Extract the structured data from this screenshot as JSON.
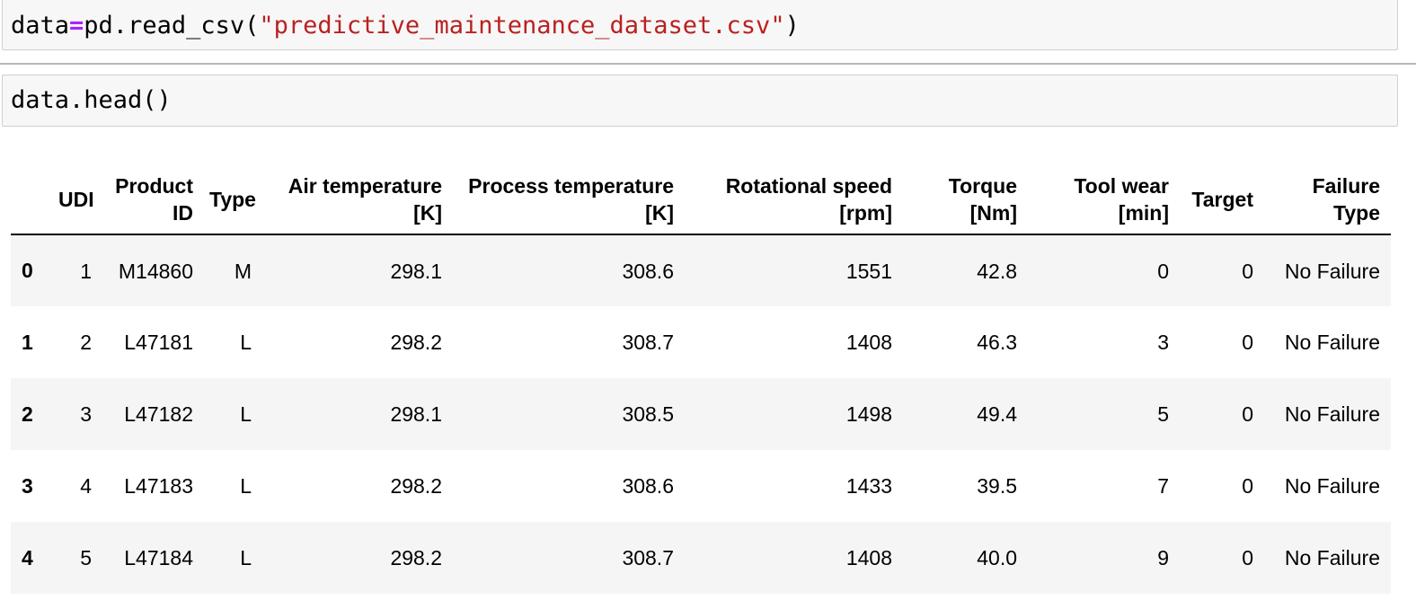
{
  "cells": [
    {
      "code_tokens": [
        {
          "text": "data",
          "kind": "name"
        },
        {
          "text": "=",
          "kind": "operator"
        },
        {
          "text": "pd.read_csv(",
          "kind": "name"
        },
        {
          "text": "\"predictive_maintenance_dataset.csv\"",
          "kind": "string"
        },
        {
          "text": ")",
          "kind": "name"
        }
      ]
    },
    {
      "code_tokens": [
        {
          "text": "data.head()",
          "kind": "name"
        }
      ]
    }
  ],
  "dataframe": {
    "columns": [
      "",
      "UDI",
      "Product ID",
      "Type",
      "Air temperature [K]",
      "Process temperature [K]",
      "Rotational speed [rpm]",
      "Torque [Nm]",
      "Tool wear [min]",
      "Target",
      "Failure Type"
    ],
    "rows": [
      [
        "0",
        "1",
        "M14860",
        "M",
        "298.1",
        "308.6",
        "1551",
        "42.8",
        "0",
        "0",
        "No Failure"
      ],
      [
        "1",
        "2",
        "L47181",
        "L",
        "298.2",
        "308.7",
        "1408",
        "46.3",
        "3",
        "0",
        "No Failure"
      ],
      [
        "2",
        "3",
        "L47182",
        "L",
        "298.1",
        "308.5",
        "1498",
        "49.4",
        "5",
        "0",
        "No Failure"
      ],
      [
        "3",
        "4",
        "L47183",
        "L",
        "298.2",
        "308.6",
        "1433",
        "39.5",
        "7",
        "0",
        "No Failure"
      ],
      [
        "4",
        "5",
        "L47184",
        "L",
        "298.2",
        "308.7",
        "1408",
        "40.0",
        "9",
        "0",
        "No Failure"
      ]
    ]
  },
  "colors": {
    "cell_background": "#f7f7f7",
    "cell_border": "#cfcfcf",
    "operator": "#aa22ff",
    "string": "#ba2121",
    "row_stripe": "#f5f5f5"
  }
}
